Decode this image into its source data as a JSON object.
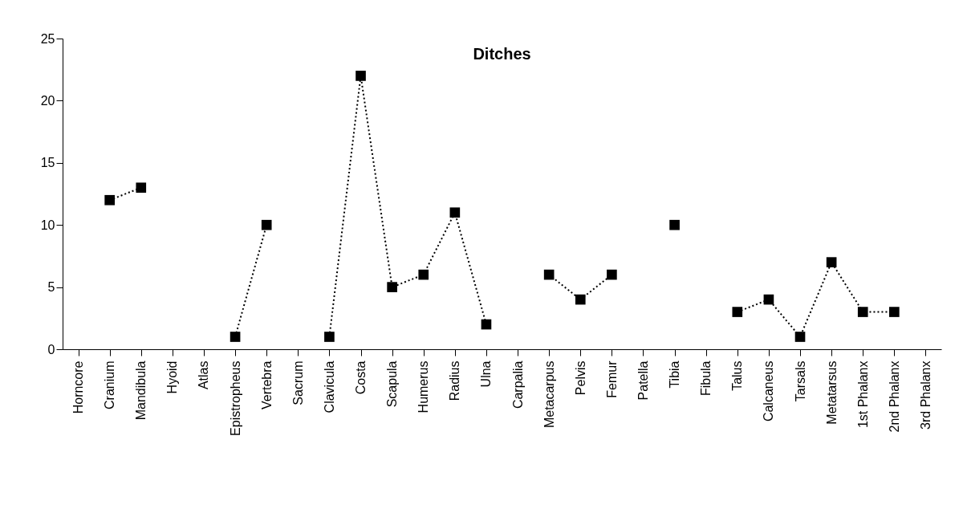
{
  "chart_data": {
    "type": "line",
    "title": "Ditches",
    "categories": [
      "Horncore",
      "Cranium",
      "Mandibula",
      "Hyoid",
      "Atlas",
      "Epistropheus",
      "Vertebra",
      "Sacrum",
      "Clavicula",
      "Costa",
      "Scapula",
      "Humerus",
      "Radius",
      "Ulna",
      "Carpalia",
      "Metacarpus",
      "Pelvis",
      "Femur",
      "Patella",
      "Tibia",
      "Fibula",
      "Talus",
      "Calcaneus",
      "Tarsals",
      "Metatarsus",
      "1st Phalanx",
      "2nd Phalanx",
      "3rd Phalanx"
    ],
    "series": [
      {
        "color": "#000000",
        "values": [
          null,
          12,
          13,
          null,
          null,
          1,
          10,
          null,
          1,
          22,
          5,
          6,
          11,
          2,
          null,
          6,
          4,
          6,
          null,
          10,
          null,
          3,
          4,
          1,
          7,
          3,
          3,
          null
        ]
      }
    ],
    "ylim": [
      0,
      25
    ],
    "yticks": [
      0,
      5,
      10,
      15,
      20,
      25
    ],
    "grid": false,
    "marker": "square",
    "line_style": "dotted"
  }
}
